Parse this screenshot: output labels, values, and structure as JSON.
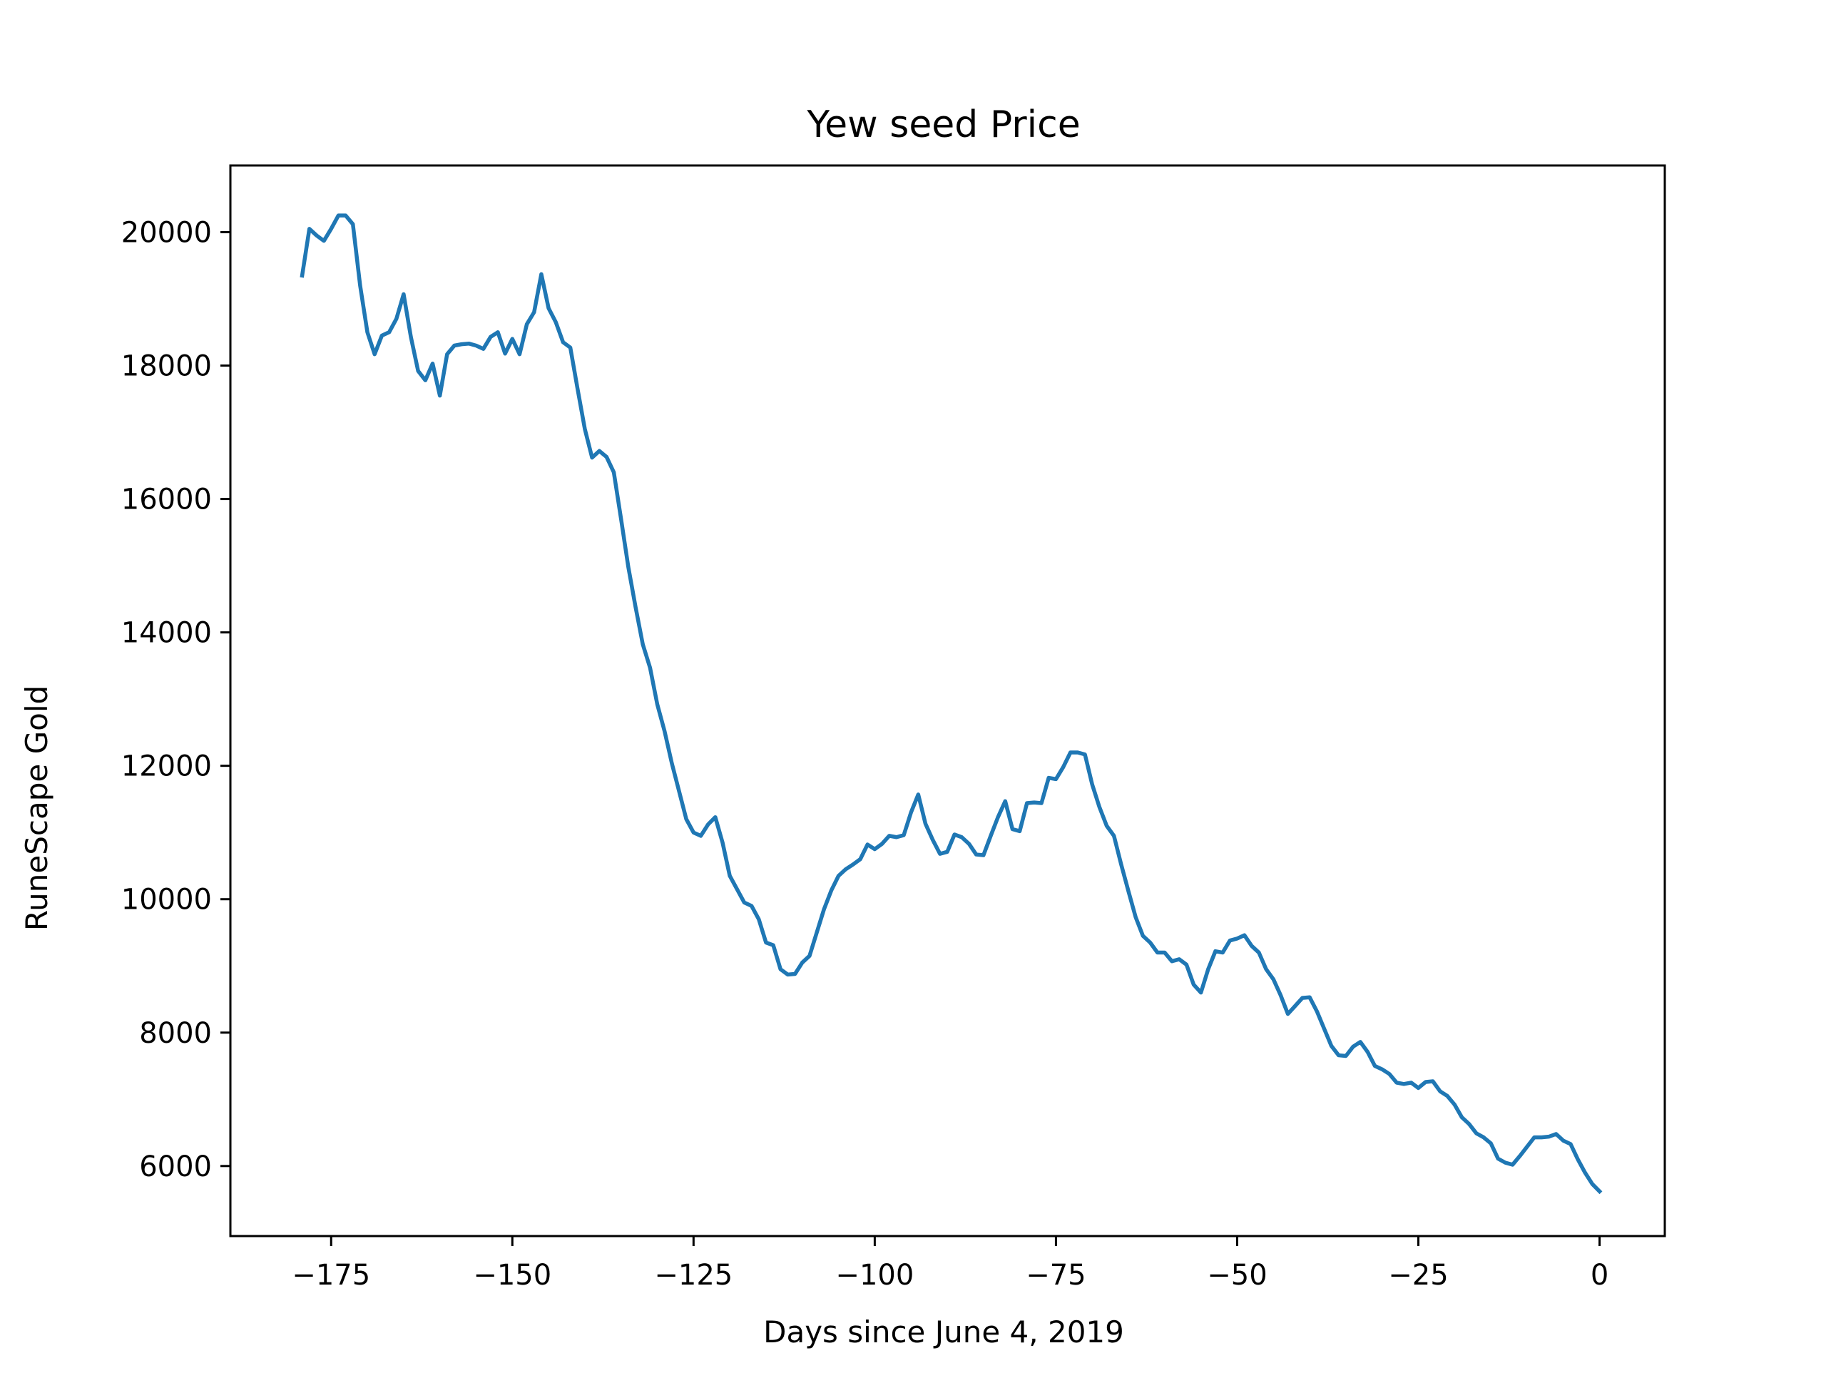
{
  "chart_data": {
    "type": "line",
    "title": "Yew seed Price",
    "xlabel": "Days since June 4, 2019",
    "ylabel": "RuneScape Gold",
    "xlim": [
      -188.9,
      9
    ],
    "ylim": [
      4950,
      21000
    ],
    "grid": false,
    "legend": "none",
    "xticks": [
      -175,
      -150,
      -125,
      -100,
      -75,
      -50,
      -25,
      0
    ],
    "xtick_labels": [
      "−175",
      "−150",
      "−125",
      "−100",
      "−75",
      "−50",
      "−25",
      "0"
    ],
    "yticks": [
      6000,
      8000,
      10000,
      12000,
      14000,
      16000,
      18000,
      20000
    ],
    "ytick_labels": [
      "6000",
      "8000",
      "10000",
      "12000",
      "14000",
      "16000",
      "18000",
      "20000"
    ],
    "series": [
      {
        "color": "#1f77b4",
        "x": [
          -179,
          -178,
          -177,
          -176,
          -175,
          -174,
          -173,
          -172,
          -171,
          -170,
          -169,
          -168,
          -167,
          -166,
          -165,
          -164,
          -163,
          -162,
          -161,
          -160,
          -159,
          -158,
          -157,
          -156,
          -155,
          -154,
          -153,
          -152,
          -151,
          -150,
          -149,
          -148,
          -147,
          -146,
          -145,
          -144,
          -143,
          -142,
          -141,
          -140,
          -139,
          -138,
          -137,
          -136,
          -135,
          -134,
          -133,
          -132,
          -131,
          -130,
          -129,
          -128,
          -127,
          -126,
          -125,
          -124,
          -123,
          -122,
          -121,
          -120,
          -119,
          -118,
          -117,
          -116,
          -115,
          -114,
          -113,
          -112,
          -111,
          -110,
          -109,
          -108,
          -107,
          -106,
          -105,
          -104,
          -103,
          -102,
          -101,
          -100,
          -99,
          -98,
          -97,
          -96,
          -95,
          -94,
          -93,
          -92,
          -91,
          -90,
          -89,
          -88,
          -87,
          -86,
          -85,
          -84,
          -83,
          -82,
          -81,
          -80,
          -79,
          -78,
          -77,
          -76,
          -75,
          -74,
          -73,
          -72,
          -71,
          -70,
          -69,
          -68,
          -67,
          -66,
          -65,
          -64,
          -63,
          -62,
          -61,
          -60,
          -59,
          -58,
          -57,
          -56,
          -55,
          -54,
          -53,
          -52,
          -51,
          -50,
          -49,
          -48,
          -47,
          -46,
          -45,
          -44,
          -43,
          -42,
          -41,
          -40,
          -39,
          -38,
          -37,
          -36,
          -35,
          -34,
          -33,
          -32,
          -31,
          -30,
          -29,
          -28,
          -27,
          -26,
          -25,
          -24,
          -23,
          -22,
          -21,
          -20,
          -19,
          -18,
          -17,
          -16,
          -15,
          -14,
          -13,
          -12,
          -11,
          -10,
          -9,
          -8,
          -7,
          -6,
          -5,
          -4,
          -3,
          -2,
          -1,
          0
        ],
        "y": [
          19350,
          20050,
          19950,
          19870,
          20050,
          20250,
          20250,
          20120,
          19200,
          18500,
          18170,
          18450,
          18500,
          18700,
          19070,
          18430,
          17920,
          17780,
          18030,
          17550,
          18170,
          18300,
          18320,
          18330,
          18300,
          18250,
          18430,
          18500,
          18180,
          18400,
          18170,
          18620,
          18800,
          19370,
          18860,
          18650,
          18350,
          18270,
          17650,
          17050,
          16620,
          16720,
          16630,
          16400,
          15700,
          14980,
          14380,
          13820,
          13470,
          12920,
          12520,
          12040,
          11620,
          11200,
          11000,
          10950,
          11120,
          11230,
          10850,
          10350,
          10150,
          9950,
          9900,
          9700,
          9350,
          9310,
          8950,
          8870,
          8880,
          9050,
          9150,
          9500,
          9850,
          10130,
          10350,
          10450,
          10520,
          10600,
          10820,
          10750,
          10830,
          10950,
          10930,
          10960,
          11300,
          11570,
          11130,
          10890,
          10680,
          10710,
          10970,
          10930,
          10830,
          10670,
          10660,
          10950,
          11230,
          11470,
          11050,
          11020,
          11440,
          11450,
          11440,
          11820,
          11800,
          11980,
          12200,
          12200,
          12170,
          11720,
          11380,
          11100,
          10950,
          10520,
          10120,
          9730,
          9450,
          9350,
          9200,
          9200,
          9070,
          9100,
          9020,
          8720,
          8600,
          8950,
          9220,
          9200,
          9380,
          9410,
          9460,
          9300,
          9200,
          8950,
          8800,
          8560,
          8280,
          8400,
          8520,
          8530,
          8320,
          8060,
          7800,
          7660,
          7650,
          7790,
          7860,
          7710,
          7500,
          7450,
          7380,
          7250,
          7230,
          7250,
          7170,
          7260,
          7270,
          7120,
          7050,
          6920,
          6730,
          6630,
          6490,
          6430,
          6340,
          6110,
          6050,
          6020,
          6150,
          6290,
          6430,
          6430,
          6440,
          6480,
          6380,
          6330,
          6100,
          5900,
          5730,
          5620
        ]
      }
    ]
  }
}
